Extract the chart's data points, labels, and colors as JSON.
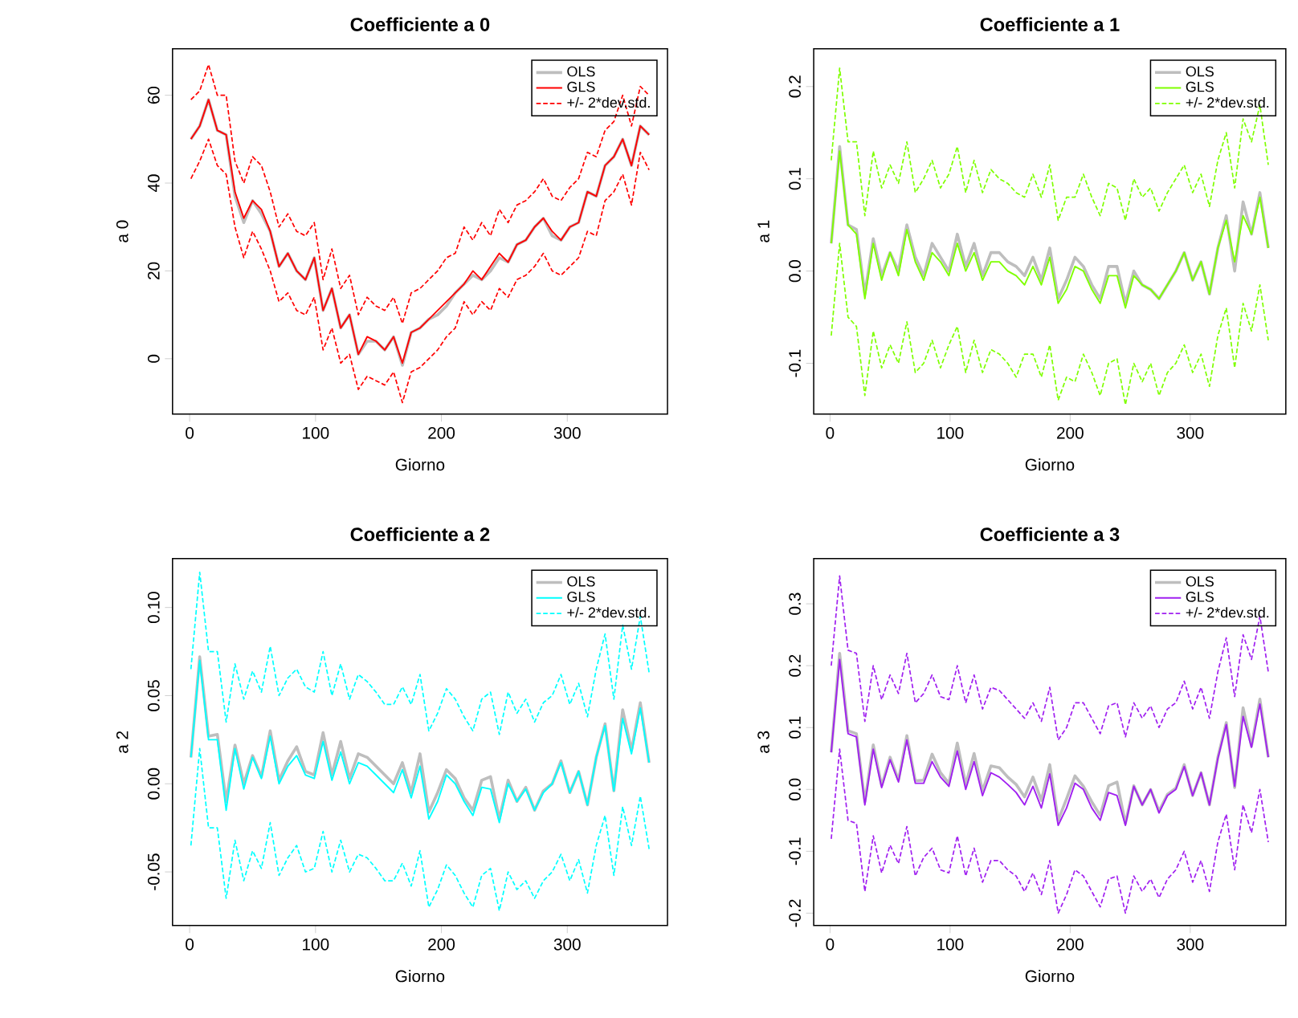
{
  "chart_data": [
    {
      "type": "line",
      "title": "Coefficiente  a 0",
      "xlabel": "Giorno",
      "ylabel": "a 0",
      "legend": "top right",
      "xlim": [
        -13.6,
        379.6
      ],
      "ylim": [
        -12.6,
        70.6
      ],
      "xticks": [
        0,
        100,
        200,
        300
      ],
      "yticks": [
        0,
        20,
        40,
        60
      ],
      "x": [
        1,
        8,
        15,
        22,
        29,
        36,
        43,
        50,
        57,
        64,
        71,
        78,
        85,
        92,
        99,
        106,
        113,
        120,
        127,
        134,
        141,
        148,
        155,
        162,
        169,
        176,
        183,
        190,
        197,
        204,
        211,
        218,
        225,
        232,
        239,
        246,
        253,
        260,
        267,
        274,
        281,
        288,
        295,
        302,
        309,
        316,
        323,
        330,
        337,
        344,
        351,
        358,
        365
      ],
      "series": [
        {
          "name": "OLS",
          "color": "#bebebe",
          "values": [
            50,
            53,
            59,
            52,
            51,
            37,
            31,
            36,
            33,
            29,
            21,
            24,
            20,
            18,
            23,
            11,
            16,
            7,
            10,
            1,
            4,
            4,
            2,
            5,
            -1.5,
            6,
            7,
            9,
            10,
            12,
            15,
            17,
            19,
            18,
            20,
            23,
            22,
            26,
            27,
            30,
            32,
            28,
            27,
            30,
            31,
            38,
            37,
            44,
            46,
            50,
            44,
            53,
            51
          ]
        },
        {
          "name": "GLS",
          "color": "#ff0000",
          "values": [
            50,
            53,
            59,
            52,
            51,
            38,
            32,
            36,
            34,
            29,
            21,
            24,
            20,
            18,
            23,
            11,
            16,
            7,
            10,
            1,
            5,
            4,
            2,
            5,
            -1,
            6,
            7,
            9,
            11,
            13,
            15,
            17,
            20,
            18,
            21,
            24,
            22,
            26,
            27,
            30,
            32,
            29,
            27,
            30,
            31,
            38,
            37,
            44,
            46,
            50,
            44,
            53,
            51
          ]
        },
        {
          "name": "+/- 2*dev.std.",
          "color": "#ff0000",
          "line_style": "dashed",
          "values": [
            59,
            61,
            67,
            60,
            60,
            45,
            40,
            46,
            44,
            38,
            30,
            33,
            29,
            28,
            31,
            18,
            25,
            16,
            19,
            10,
            14,
            12,
            11,
            14,
            8,
            15,
            16,
            18,
            20,
            23,
            24,
            30,
            27,
            31,
            28,
            34,
            31,
            35,
            36,
            38,
            41,
            37,
            36,
            39,
            41,
            47,
            46,
            52,
            54,
            60,
            53,
            62,
            60
          ]
        },
        {
          "color": "#ff0000",
          "line_style": "dashed",
          "values": [
            41,
            45,
            50,
            44,
            42,
            30,
            23,
            29,
            25,
            20,
            13,
            15,
            11,
            10,
            14,
            2,
            7,
            -1,
            1,
            -7,
            -4,
            -5,
            -6,
            -3,
            -10,
            -3,
            -2,
            0,
            2,
            5,
            7,
            13,
            10,
            13,
            11,
            16,
            14,
            18,
            19,
            21,
            24,
            20,
            19,
            21,
            23,
            29,
            28,
            36,
            38,
            42,
            35,
            47,
            43
          ]
        }
      ]
    },
    {
      "type": "line",
      "title": "Coefficiente  a 1",
      "xlabel": "Giorno",
      "ylabel": "a 1",
      "legend": "top right",
      "xlim": [
        -13.6,
        379.6
      ],
      "ylim": [
        -0.155,
        0.241
      ],
      "xticks": [
        0,
        100,
        200,
        300
      ],
      "yticks": [
        {
          "value": -0.1,
          "label": "-0.1"
        },
        {
          "value": 0,
          "label": "0.0"
        },
        {
          "value": 0.1,
          "label": "0.1"
        },
        {
          "value": 0.2,
          "label": "0.2"
        }
      ],
      "x": [
        1,
        8,
        15,
        22,
        29,
        36,
        43,
        50,
        57,
        64,
        71,
        78,
        85,
        92,
        99,
        106,
        113,
        120,
        127,
        134,
        141,
        148,
        155,
        162,
        169,
        176,
        183,
        190,
        197,
        204,
        211,
        218,
        225,
        232,
        239,
        246,
        253,
        260,
        267,
        274,
        281,
        288,
        295,
        302,
        309,
        316,
        323,
        330,
        337,
        344,
        351,
        358,
        365
      ],
      "series": [
        {
          "name": "OLS",
          "color": "#bebebe",
          "values": [
            0.03,
            0.135,
            0.05,
            0.045,
            -0.025,
            0.035,
            -0.005,
            0.02,
            0.0,
            0.05,
            0.015,
            -0.005,
            0.03,
            0.015,
            0.0,
            0.04,
            0.005,
            0.03,
            -0.005,
            0.02,
            0.02,
            0.01,
            0.005,
            -0.005,
            0.015,
            -0.01,
            0.025,
            -0.03,
            -0.01,
            0.015,
            0.005,
            -0.015,
            -0.03,
            0.005,
            0.005,
            -0.035,
            0.0,
            -0.015,
            -0.02,
            -0.03,
            -0.015,
            0.0,
            0.02,
            -0.01,
            0.01,
            -0.025,
            0.025,
            0.06,
            0.0,
            0.075,
            0.04,
            0.085,
            0.025
          ]
        },
        {
          "name": "GLS",
          "color": "#7fff00",
          "values": [
            0.03,
            0.13,
            0.05,
            0.04,
            -0.03,
            0.03,
            -0.01,
            0.02,
            -0.005,
            0.045,
            0.01,
            -0.01,
            0.02,
            0.01,
            -0.005,
            0.03,
            0.0,
            0.02,
            -0.01,
            0.01,
            0.01,
            0.0,
            -0.005,
            -0.015,
            0.005,
            -0.015,
            0.015,
            -0.035,
            -0.02,
            0.005,
            0.0,
            -0.02,
            -0.035,
            -0.005,
            -0.005,
            -0.04,
            -0.005,
            -0.015,
            -0.02,
            -0.03,
            -0.015,
            0.0,
            0.02,
            -0.01,
            0.01,
            -0.025,
            0.025,
            0.055,
            0.01,
            0.06,
            0.04,
            0.08,
            0.025
          ]
        },
        {
          "name": "+/- 2*dev.std.",
          "color": "#7fff00",
          "line_style": "dashed",
          "values": [
            0.12,
            0.22,
            0.14,
            0.14,
            0.06,
            0.13,
            0.09,
            0.115,
            0.095,
            0.14,
            0.085,
            0.1,
            0.12,
            0.09,
            0.105,
            0.135,
            0.085,
            0.12,
            0.085,
            0.11,
            0.1,
            0.095,
            0.085,
            0.08,
            0.105,
            0.08,
            0.115,
            0.055,
            0.08,
            0.08,
            0.105,
            0.08,
            0.06,
            0.095,
            0.09,
            0.055,
            0.1,
            0.08,
            0.09,
            0.065,
            0.085,
            0.1,
            0.115,
            0.085,
            0.105,
            0.07,
            0.12,
            0.15,
            0.09,
            0.165,
            0.14,
            0.18,
            0.115
          ]
        },
        {
          "color": "#7fff00",
          "line_style": "dashed",
          "values": [
            -0.07,
            0.03,
            -0.05,
            -0.06,
            -0.135,
            -0.065,
            -0.105,
            -0.08,
            -0.1,
            -0.055,
            -0.11,
            -0.1,
            -0.075,
            -0.105,
            -0.08,
            -0.06,
            -0.11,
            -0.075,
            -0.11,
            -0.085,
            -0.09,
            -0.1,
            -0.115,
            -0.09,
            -0.09,
            -0.115,
            -0.08,
            -0.14,
            -0.115,
            -0.12,
            -0.09,
            -0.11,
            -0.135,
            -0.1,
            -0.095,
            -0.145,
            -0.1,
            -0.12,
            -0.1,
            -0.135,
            -0.11,
            -0.1,
            -0.08,
            -0.11,
            -0.09,
            -0.125,
            -0.07,
            -0.04,
            -0.105,
            -0.035,
            -0.065,
            -0.015,
            -0.075
          ]
        }
      ]
    },
    {
      "type": "line",
      "title": "Coefficiente  a 2",
      "xlabel": "Giorno",
      "ylabel": "a 2",
      "legend": "top right",
      "xlim": [
        -13.6,
        379.6
      ],
      "ylim": [
        -0.0804,
        0.1277
      ],
      "xticks": [
        0,
        100,
        200,
        300
      ],
      "yticks": [
        {
          "value": -0.05,
          "label": "-0.05"
        },
        {
          "value": 0,
          "label": "0.00"
        },
        {
          "value": 0.05,
          "label": "0.05"
        },
        {
          "value": 0.1,
          "label": "0.10"
        }
      ],
      "x": [
        1,
        8,
        15,
        22,
        29,
        36,
        43,
        50,
        57,
        64,
        71,
        78,
        85,
        92,
        99,
        106,
        113,
        120,
        127,
        134,
        141,
        148,
        155,
        162,
        169,
        176,
        183,
        190,
        197,
        204,
        211,
        218,
        225,
        232,
        239,
        246,
        253,
        260,
        267,
        274,
        281,
        288,
        295,
        302,
        309,
        316,
        323,
        330,
        337,
        344,
        351,
        358,
        365
      ],
      "series": [
        {
          "name": "OLS",
          "color": "#bebebe",
          "values": [
            0.015,
            0.072,
            0.027,
            0.028,
            -0.01,
            0.022,
            0.0,
            0.016,
            0.004,
            0.03,
            0.002,
            0.013,
            0.021,
            0.007,
            0.005,
            0.029,
            0.005,
            0.024,
            0.003,
            0.017,
            0.015,
            0.01,
            0.005,
            0.0,
            0.012,
            -0.005,
            0.017,
            -0.016,
            -0.005,
            0.008,
            0.003,
            -0.008,
            -0.015,
            0.002,
            0.004,
            -0.02,
            0.002,
            -0.01,
            -0.002,
            -0.015,
            -0.004,
            0.0,
            0.013,
            -0.005,
            0.007,
            -0.012,
            0.015,
            0.034,
            -0.004,
            0.042,
            0.019,
            0.046,
            0.012
          ]
        },
        {
          "name": "GLS",
          "color": "#00ffff",
          "values": [
            0.015,
            0.07,
            0.025,
            0.025,
            -0.015,
            0.02,
            -0.003,
            0.015,
            0.003,
            0.027,
            0.0,
            0.01,
            0.016,
            0.005,
            0.003,
            0.024,
            0.002,
            0.018,
            0.0,
            0.012,
            0.01,
            0.005,
            0.0,
            -0.005,
            0.008,
            -0.008,
            0.01,
            -0.02,
            -0.01,
            0.005,
            0.0,
            -0.01,
            -0.018,
            -0.002,
            -0.003,
            -0.022,
            0.0,
            -0.01,
            -0.003,
            -0.015,
            -0.005,
            0.0,
            0.012,
            -0.005,
            0.007,
            -0.012,
            0.015,
            0.033,
            -0.004,
            0.037,
            0.017,
            0.043,
            0.012
          ]
        },
        {
          "name": "+/- 2*dev.std.",
          "color": "#00ffff",
          "line_style": "dashed",
          "values": [
            0.065,
            0.12,
            0.075,
            0.075,
            0.035,
            0.068,
            0.048,
            0.064,
            0.052,
            0.078,
            0.05,
            0.06,
            0.065,
            0.055,
            0.052,
            0.075,
            0.05,
            0.068,
            0.048,
            0.062,
            0.058,
            0.052,
            0.045,
            0.045,
            0.055,
            0.045,
            0.062,
            0.03,
            0.04,
            0.054,
            0.048,
            0.038,
            0.03,
            0.048,
            0.052,
            0.028,
            0.052,
            0.04,
            0.048,
            0.035,
            0.046,
            0.05,
            0.062,
            0.045,
            0.057,
            0.038,
            0.065,
            0.085,
            0.048,
            0.09,
            0.065,
            0.095,
            0.063
          ]
        },
        {
          "color": "#00ffff",
          "line_style": "dashed",
          "values": [
            -0.035,
            0.02,
            -0.025,
            -0.025,
            -0.065,
            -0.032,
            -0.055,
            -0.038,
            -0.048,
            -0.022,
            -0.052,
            -0.042,
            -0.035,
            -0.05,
            -0.048,
            -0.027,
            -0.05,
            -0.032,
            -0.05,
            -0.04,
            -0.042,
            -0.048,
            -0.055,
            -0.055,
            -0.045,
            -0.058,
            -0.038,
            -0.07,
            -0.06,
            -0.046,
            -0.052,
            -0.062,
            -0.07,
            -0.052,
            -0.048,
            -0.072,
            -0.05,
            -0.06,
            -0.055,
            -0.065,
            -0.055,
            -0.05,
            -0.04,
            -0.055,
            -0.043,
            -0.062,
            -0.035,
            -0.018,
            -0.052,
            -0.013,
            -0.035,
            -0.007,
            -0.037
          ]
        }
      ]
    },
    {
      "type": "line",
      "title": "Coefficiente  a 3",
      "xlabel": "Giorno",
      "ylabel": "a 3",
      "legend": "top right",
      "xlim": [
        -13.6,
        379.6
      ],
      "ylim": [
        -0.22,
        0.373
      ],
      "xticks": [
        0,
        100,
        200,
        300
      ],
      "yticks": [
        {
          "value": -0.2,
          "label": "-0.2"
        },
        {
          "value": -0.1,
          "label": "-0.1"
        },
        {
          "value": 0,
          "label": "0.0"
        },
        {
          "value": 0.1,
          "label": "0.1"
        },
        {
          "value": 0.2,
          "label": "0.2"
        },
        {
          "value": 0.3,
          "label": "0.3"
        }
      ],
      "x": [
        1,
        8,
        15,
        22,
        29,
        36,
        43,
        50,
        57,
        64,
        71,
        78,
        85,
        92,
        99,
        106,
        113,
        120,
        127,
        134,
        141,
        148,
        155,
        162,
        169,
        176,
        183,
        190,
        197,
        204,
        211,
        218,
        225,
        232,
        239,
        246,
        253,
        260,
        267,
        274,
        281,
        288,
        295,
        302,
        309,
        316,
        323,
        330,
        337,
        344,
        351,
        358,
        365
      ],
      "series": [
        {
          "name": "OLS",
          "color": "#bebebe",
          "values": [
            0.06,
            0.22,
            0.095,
            0.09,
            -0.02,
            0.072,
            0.006,
            0.052,
            0.015,
            0.087,
            0.014,
            0.015,
            0.057,
            0.027,
            0.01,
            0.075,
            0.008,
            0.058,
            -0.002,
            0.038,
            0.035,
            0.02,
            0.008,
            -0.012,
            0.02,
            -0.018,
            0.04,
            -0.05,
            -0.015,
            0.022,
            0.005,
            -0.02,
            -0.042,
            0.006,
            0.012,
            -0.055,
            0.006,
            -0.025,
            0.0,
            -0.035,
            -0.008,
            0.002,
            0.04,
            -0.01,
            0.027,
            -0.025,
            0.052,
            0.108,
            0.003,
            0.132,
            0.07,
            0.146,
            0.052
          ]
        },
        {
          "name": "GLS",
          "color": "#a020f0",
          "values": [
            0.06,
            0.21,
            0.09,
            0.085,
            -0.025,
            0.065,
            0.003,
            0.048,
            0.012,
            0.08,
            0.01,
            0.01,
            0.045,
            0.02,
            0.005,
            0.062,
            0.0,
            0.045,
            -0.01,
            0.027,
            0.02,
            0.008,
            -0.005,
            -0.025,
            0.005,
            -0.03,
            0.025,
            -0.058,
            -0.03,
            0.01,
            0.0,
            -0.03,
            -0.05,
            -0.005,
            -0.01,
            -0.058,
            0.005,
            -0.025,
            0.0,
            -0.038,
            -0.01,
            0.0,
            0.037,
            -0.01,
            0.027,
            -0.025,
            0.05,
            0.105,
            0.005,
            0.118,
            0.068,
            0.138,
            0.052
          ]
        },
        {
          "name": "+/- 2*dev.std.",
          "color": "#a020f0",
          "line_style": "dashed",
          "values": [
            0.2,
            0.345,
            0.225,
            0.22,
            0.11,
            0.2,
            0.145,
            0.185,
            0.155,
            0.22,
            0.14,
            0.155,
            0.185,
            0.15,
            0.145,
            0.2,
            0.14,
            0.185,
            0.13,
            0.165,
            0.16,
            0.145,
            0.13,
            0.115,
            0.14,
            0.11,
            0.165,
            0.08,
            0.1,
            0.14,
            0.14,
            0.115,
            0.09,
            0.135,
            0.14,
            0.085,
            0.14,
            0.115,
            0.135,
            0.1,
            0.13,
            0.14,
            0.175,
            0.13,
            0.165,
            0.115,
            0.19,
            0.245,
            0.15,
            0.25,
            0.21,
            0.28,
            0.19
          ]
        },
        {
          "color": "#a020f0",
          "line_style": "dashed",
          "values": [
            -0.08,
            0.065,
            -0.05,
            -0.055,
            -0.165,
            -0.075,
            -0.135,
            -0.09,
            -0.12,
            -0.06,
            -0.14,
            -0.11,
            -0.095,
            -0.13,
            -0.135,
            -0.075,
            -0.14,
            -0.095,
            -0.15,
            -0.115,
            -0.115,
            -0.13,
            -0.14,
            -0.165,
            -0.135,
            -0.17,
            -0.115,
            -0.2,
            -0.17,
            -0.13,
            -0.14,
            -0.165,
            -0.19,
            -0.145,
            -0.14,
            -0.2,
            -0.14,
            -0.165,
            -0.145,
            -0.175,
            -0.145,
            -0.13,
            -0.1,
            -0.15,
            -0.115,
            -0.165,
            -0.085,
            -0.04,
            -0.13,
            -0.025,
            -0.07,
            0.0,
            -0.085
          ]
        }
      ]
    }
  ]
}
